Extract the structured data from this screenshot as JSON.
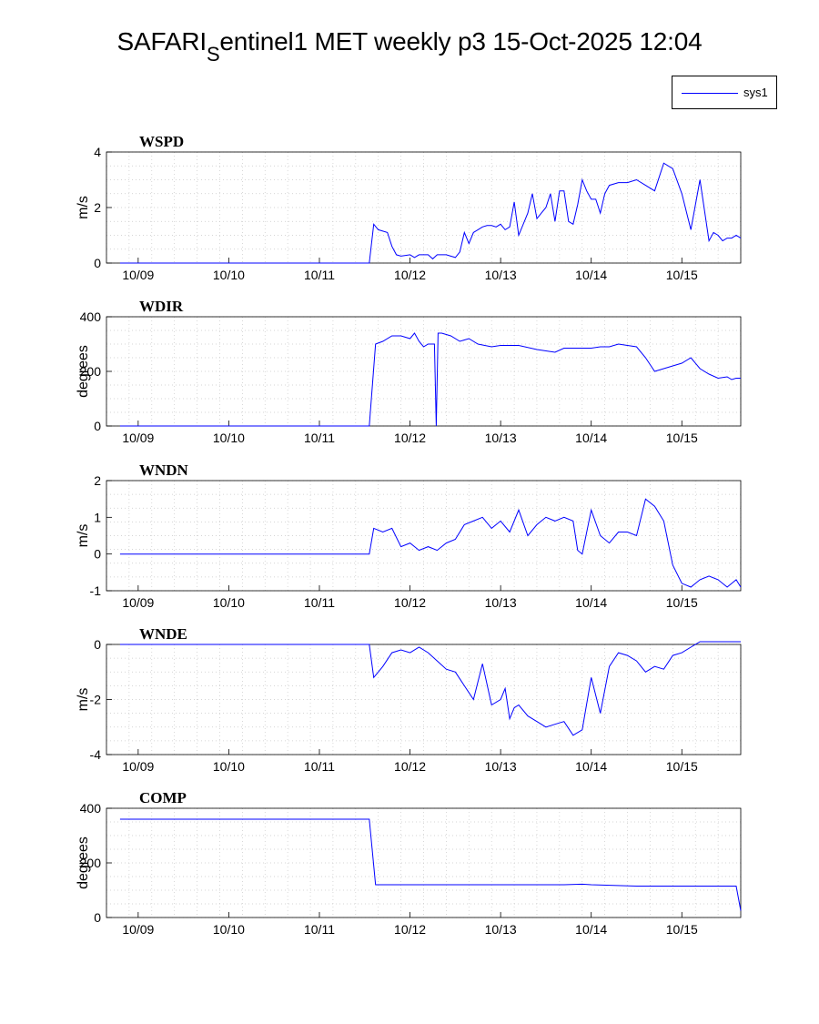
{
  "figure": {
    "title_main": "SAFARI",
    "title_sub": "S",
    "title_rest": "entinel1 MET weekly p3 15-Oct-2025 12:04",
    "legend_label": "sys1",
    "line_color": "#0000ff"
  },
  "chart_data": [
    {
      "type": "line",
      "title": "WSPD",
      "ylabel": "m/s",
      "ylim": [
        0,
        4
      ],
      "yticks": [
        0,
        2,
        4
      ],
      "ytick_labels": [
        "0",
        "2",
        "4"
      ],
      "xlim": [
        -0.35,
        6.65
      ],
      "xticks": [
        0,
        1,
        2,
        3,
        4,
        5,
        6
      ],
      "xtick_labels": [
        "10/09",
        "10/10",
        "10/11",
        "10/12",
        "10/13",
        "10/14",
        "10/15"
      ],
      "grid": true,
      "series": [
        {
          "name": "sys1",
          "x": [
            -0.2,
            0.5,
            1.5,
            2.55,
            2.6,
            2.65,
            2.75,
            2.8,
            2.85,
            2.9,
            3.0,
            3.05,
            3.1,
            3.2,
            3.25,
            3.3,
            3.4,
            3.5,
            3.55,
            3.6,
            3.65,
            3.7,
            3.75,
            3.8,
            3.85,
            3.9,
            3.95,
            4.0,
            4.05,
            4.1,
            4.15,
            4.2,
            4.25,
            4.3,
            4.35,
            4.4,
            4.45,
            4.5,
            4.55,
            4.6,
            4.65,
            4.7,
            4.75,
            4.8,
            4.85,
            4.9,
            4.95,
            5.0,
            5.05,
            5.1,
            5.15,
            5.2,
            5.3,
            5.4,
            5.5,
            5.6,
            5.7,
            5.8,
            5.9,
            6.0,
            6.1,
            6.2,
            6.3,
            6.35,
            6.4,
            6.45,
            6.5,
            6.55,
            6.6,
            6.65
          ],
          "y": [
            0,
            0,
            0,
            0,
            1.4,
            1.2,
            1.1,
            0.6,
            0.3,
            0.25,
            0.3,
            0.2,
            0.3,
            0.3,
            0.15,
            0.3,
            0.3,
            0.2,
            0.4,
            1.1,
            0.7,
            1.1,
            1.2,
            1.3,
            1.35,
            1.35,
            1.3,
            1.4,
            1.2,
            1.3,
            2.2,
            1.0,
            1.4,
            1.8,
            2.5,
            1.6,
            1.8,
            2.0,
            2.5,
            1.5,
            2.6,
            2.6,
            1.5,
            1.4,
            2.1,
            3.0,
            2.6,
            2.3,
            2.3,
            1.8,
            2.5,
            2.8,
            2.9,
            2.9,
            3.0,
            2.8,
            2.6,
            3.6,
            3.4,
            2.5,
            1.2,
            3.0,
            0.8,
            1.1,
            1.0,
            0.8,
            0.9,
            0.9,
            1.0,
            0.9
          ]
        }
      ]
    },
    {
      "type": "line",
      "title": "WDIR",
      "ylabel": "degrees",
      "ylim": [
        0,
        400
      ],
      "yticks": [
        0,
        200,
        400
      ],
      "ytick_labels": [
        "0",
        "200",
        "400"
      ],
      "xlim": [
        -0.35,
        6.65
      ],
      "xticks": [
        0,
        1,
        2,
        3,
        4,
        5,
        6
      ],
      "xtick_labels": [
        "10/09",
        "10/10",
        "10/11",
        "10/12",
        "10/13",
        "10/14",
        "10/15"
      ],
      "grid": true,
      "series": [
        {
          "name": "sys1",
          "x": [
            -0.2,
            0.5,
            1.5,
            2.55,
            2.62,
            2.7,
            2.8,
            2.9,
            3.0,
            3.05,
            3.1,
            3.15,
            3.2,
            3.27,
            3.29,
            3.31,
            3.35,
            3.45,
            3.55,
            3.65,
            3.75,
            3.9,
            4.0,
            4.2,
            4.4,
            4.6,
            4.7,
            4.8,
            5.0,
            5.1,
            5.2,
            5.3,
            5.4,
            5.5,
            5.6,
            5.7,
            5.8,
            5.9,
            6.0,
            6.1,
            6.2,
            6.3,
            6.4,
            6.5,
            6.55,
            6.6,
            6.65
          ],
          "y": [
            0,
            0,
            0,
            0,
            300,
            310,
            330,
            330,
            320,
            340,
            310,
            290,
            300,
            300,
            0,
            340,
            340,
            330,
            310,
            320,
            300,
            290,
            295,
            295,
            280,
            270,
            285,
            285,
            285,
            290,
            290,
            300,
            295,
            290,
            250,
            200,
            210,
            220,
            230,
            250,
            210,
            190,
            175,
            180,
            170,
            175,
            175
          ]
        }
      ]
    },
    {
      "type": "line",
      "title": "WNDN",
      "ylabel": "m/s",
      "ylim": [
        -1,
        2
      ],
      "yticks": [
        -1,
        0,
        1,
        2
      ],
      "ytick_labels": [
        "-1",
        "0",
        "1",
        "2"
      ],
      "xlim": [
        -0.35,
        6.65
      ],
      "xticks": [
        0,
        1,
        2,
        3,
        4,
        5,
        6
      ],
      "xtick_labels": [
        "10/09",
        "10/10",
        "10/11",
        "10/12",
        "10/13",
        "10/14",
        "10/15"
      ],
      "grid": true,
      "series": [
        {
          "name": "sys1",
          "x": [
            -0.2,
            0.5,
            1.5,
            2.55,
            2.6,
            2.7,
            2.8,
            2.9,
            3.0,
            3.1,
            3.2,
            3.3,
            3.4,
            3.5,
            3.6,
            3.7,
            3.8,
            3.9,
            4.0,
            4.1,
            4.2,
            4.3,
            4.4,
            4.5,
            4.6,
            4.7,
            4.8,
            4.85,
            4.9,
            5.0,
            5.1,
            5.2,
            5.3,
            5.4,
            5.5,
            5.6,
            5.7,
            5.8,
            5.9,
            6.0,
            6.1,
            6.2,
            6.3,
            6.4,
            6.5,
            6.6,
            6.65
          ],
          "y": [
            0,
            0,
            0,
            0,
            0.7,
            0.6,
            0.7,
            0.2,
            0.3,
            0.1,
            0.2,
            0.1,
            0.3,
            0.4,
            0.8,
            0.9,
            1.0,
            0.7,
            0.9,
            0.6,
            1.2,
            0.5,
            0.8,
            1.0,
            0.9,
            1.0,
            0.9,
            0.1,
            0.0,
            1.2,
            0.5,
            0.3,
            0.6,
            0.6,
            0.5,
            1.5,
            1.3,
            0.9,
            -0.3,
            -0.8,
            -0.9,
            -0.7,
            -0.6,
            -0.7,
            -0.9,
            -0.7,
            -0.9
          ]
        }
      ]
    },
    {
      "type": "line",
      "title": "WNDE",
      "ylabel": "m/s",
      "ylim": [
        -4,
        0
      ],
      "yticks": [
        -4,
        -2,
        0
      ],
      "ytick_labels": [
        "-4",
        "-2",
        "0"
      ],
      "xlim": [
        -0.35,
        6.65
      ],
      "xticks": [
        0,
        1,
        2,
        3,
        4,
        5,
        6
      ],
      "xtick_labels": [
        "10/09",
        "10/10",
        "10/11",
        "10/12",
        "10/13",
        "10/14",
        "10/15"
      ],
      "grid": true,
      "series": [
        {
          "name": "sys1",
          "x": [
            -0.2,
            0.5,
            1.5,
            2.55,
            2.6,
            2.7,
            2.8,
            2.9,
            3.0,
            3.1,
            3.2,
            3.3,
            3.4,
            3.5,
            3.6,
            3.7,
            3.8,
            3.9,
            4.0,
            4.05,
            4.1,
            4.15,
            4.2,
            4.3,
            4.4,
            4.5,
            4.6,
            4.7,
            4.8,
            4.9,
            5.0,
            5.1,
            5.2,
            5.3,
            5.4,
            5.5,
            5.6,
            5.7,
            5.8,
            5.9,
            6.0,
            6.1,
            6.2,
            6.3,
            6.4,
            6.5,
            6.6,
            6.65
          ],
          "y": [
            0,
            0,
            0,
            0,
            -1.2,
            -0.8,
            -0.3,
            -0.2,
            -0.3,
            -0.1,
            -0.3,
            -0.6,
            -0.9,
            -1.0,
            -1.5,
            -2.0,
            -0.7,
            -2.2,
            -2.0,
            -1.6,
            -2.7,
            -2.3,
            -2.2,
            -2.6,
            -2.8,
            -3.0,
            -2.9,
            -2.8,
            -3.3,
            -3.1,
            -1.2,
            -2.5,
            -0.8,
            -0.3,
            -0.4,
            -0.6,
            -1.0,
            -0.8,
            -0.9,
            -0.4,
            -0.3,
            -0.1,
            0.1,
            0.1,
            0.1,
            0.1,
            0.1,
            0.1
          ]
        }
      ]
    },
    {
      "type": "line",
      "title": "COMP",
      "ylabel": "degrees",
      "ylim": [
        0,
        400
      ],
      "yticks": [
        0,
        200,
        400
      ],
      "ytick_labels": [
        "0",
        "200",
        "400"
      ],
      "xlim": [
        -0.35,
        6.65
      ],
      "xticks": [
        0,
        1,
        2,
        3,
        4,
        5,
        6
      ],
      "xtick_labels": [
        "10/09",
        "10/10",
        "10/11",
        "10/12",
        "10/13",
        "10/14",
        "10/15"
      ],
      "grid": true,
      "series": [
        {
          "name": "sys1",
          "x": [
            -0.2,
            0.5,
            1.5,
            2.55,
            2.62,
            3.0,
            4.0,
            4.5,
            4.7,
            4.9,
            5.0,
            5.5,
            6.0,
            6.5,
            6.6,
            6.65
          ],
          "y": [
            360,
            360,
            360,
            360,
            120,
            120,
            120,
            120,
            120,
            122,
            120,
            115,
            115,
            115,
            115,
            25
          ]
        }
      ]
    }
  ]
}
